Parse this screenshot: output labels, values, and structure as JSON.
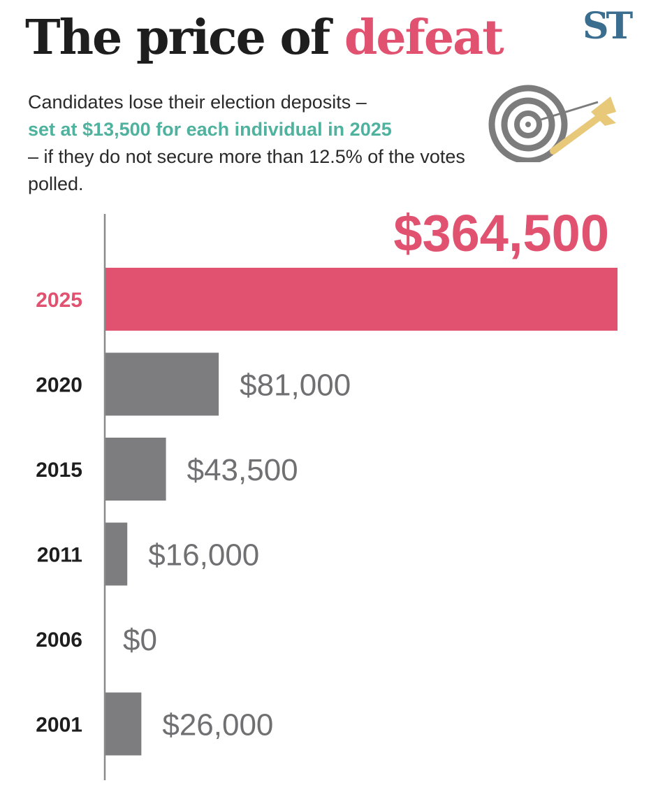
{
  "header": {
    "title_main": "The price of",
    "title_accent": "defeat",
    "logo": "ST"
  },
  "intro": {
    "line_before": "Candidates lose their election deposits –",
    "highlight": "set at $13,500 for each individual in 2025",
    "line_after": "– if they do not secure more than 12.5% of the votes polled."
  },
  "decoration": {
    "icon": "dartboard-with-dart-icon"
  },
  "colors": {
    "accent": "#e0526f",
    "teal": "#4fb29e",
    "bar": "#7d7d80",
    "value_text": "#707073",
    "axis": "#8a8a8a"
  },
  "chart_data": {
    "type": "bar",
    "orientation": "horizontal",
    "title": "The price of defeat",
    "categories": [
      "2025",
      "2020",
      "2015",
      "2011",
      "2006",
      "2001"
    ],
    "values": [
      364500,
      81000,
      43500,
      16000,
      0,
      26000
    ],
    "value_labels": [
      "$364,500",
      "$81,000",
      "$43,500",
      "$16,000",
      "$0",
      "$26,000"
    ],
    "highlight_category": "2025",
    "xlim": [
      0,
      364500
    ],
    "grid": false,
    "legend": "none",
    "xlabel": "",
    "ylabel": ""
  }
}
